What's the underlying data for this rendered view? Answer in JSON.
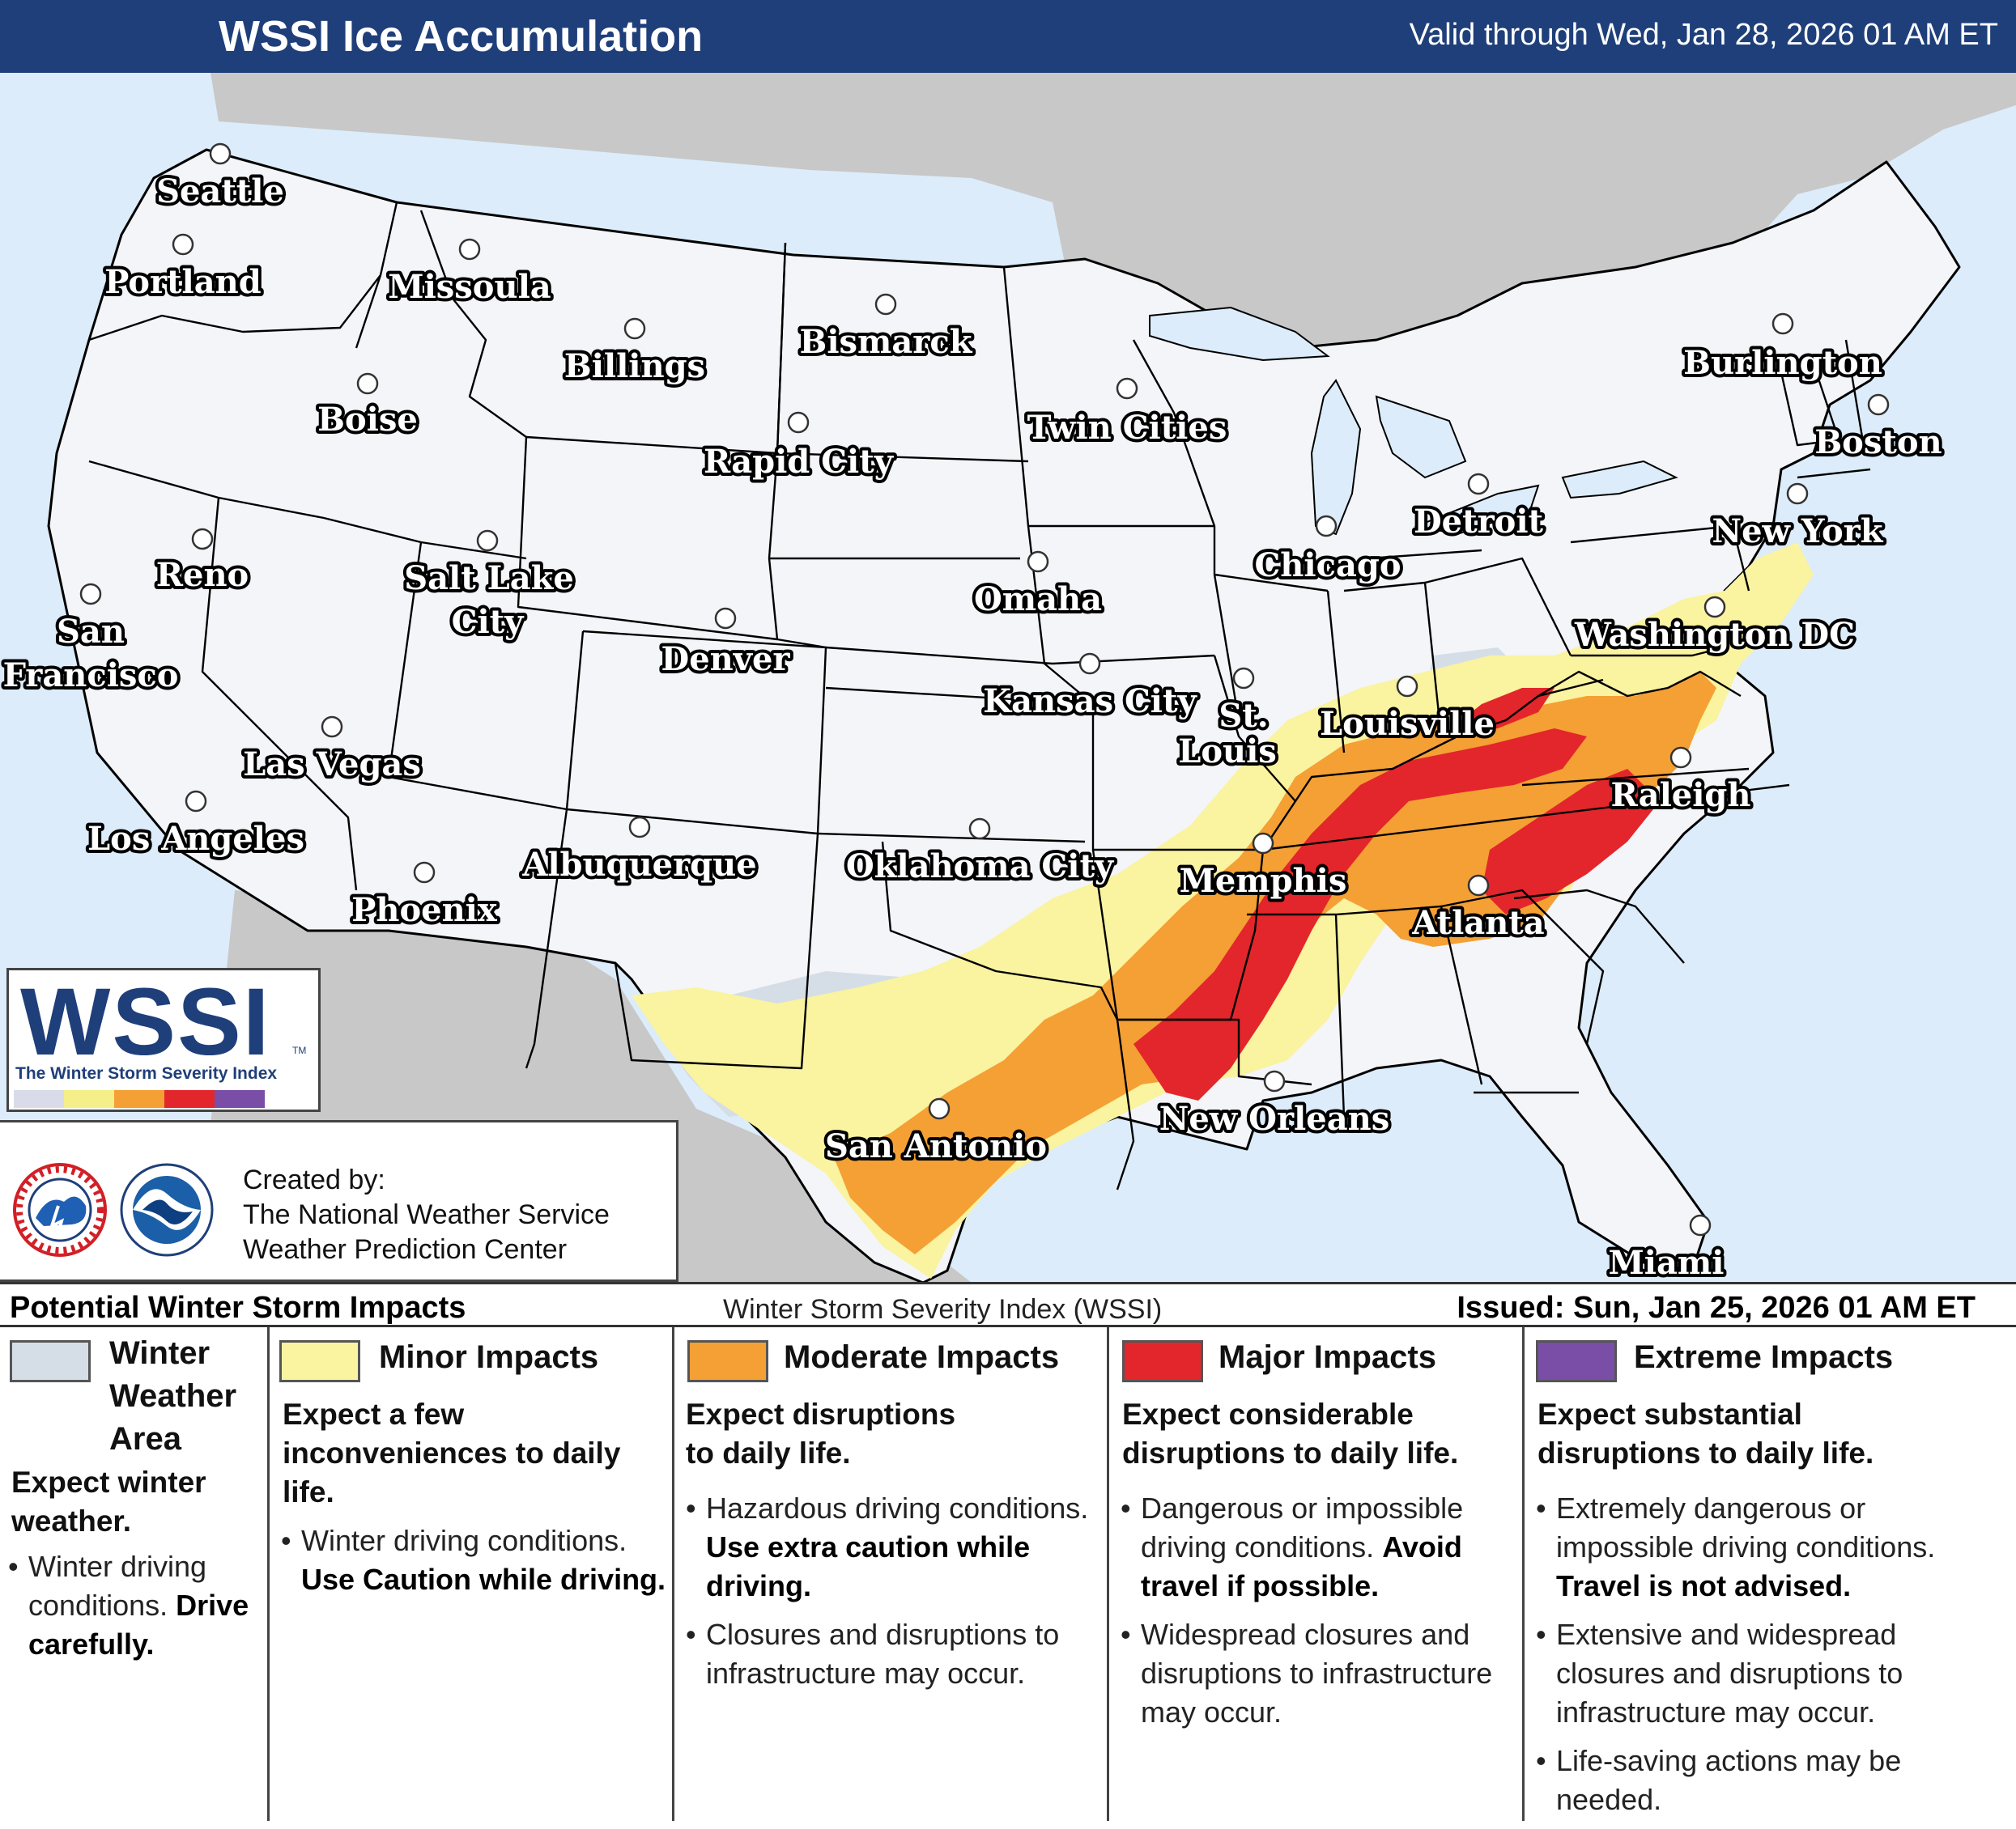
{
  "header": {
    "title": "WSSI Ice Accumulation",
    "valid": "Valid through Wed, Jan 28, 2026 01 AM ET"
  },
  "colors": {
    "header_bg": "#1f3f7a",
    "ocean": "#dcecfa",
    "foreign_land": "#c8c8c8",
    "land": "#f3f5f8",
    "winter_weather_area": "#d5dee6",
    "minor": "#faf3a0",
    "moderate": "#f4a034",
    "major": "#e3262b",
    "extreme": "#7a4ea6"
  },
  "cities": [
    {
      "name": "Seattle",
      "icon": "city-marker"
    },
    {
      "name": "Portland",
      "icon": "city-marker"
    },
    {
      "name": "Missoula",
      "icon": "city-marker"
    },
    {
      "name": "Bismarck",
      "icon": "city-marker"
    },
    {
      "name": "Billings",
      "icon": "city-marker"
    },
    {
      "name": "Boise",
      "icon": "city-marker"
    },
    {
      "name": "Twin Cities",
      "icon": "city-marker"
    },
    {
      "name": "Rapid City",
      "icon": "city-marker"
    },
    {
      "name": "Burlington",
      "icon": "city-marker"
    },
    {
      "name": "Boston",
      "icon": "city-marker"
    },
    {
      "name": "Reno",
      "icon": "city-marker"
    },
    {
      "name": "Salt Lake",
      "icon": "city-marker"
    },
    {
      "name": "City",
      "icon": ""
    },
    {
      "name": "Detroit",
      "icon": "city-marker"
    },
    {
      "name": "New York",
      "icon": "city-marker"
    },
    {
      "name": "Chicago",
      "icon": "city-marker"
    },
    {
      "name": "Omaha",
      "icon": "city-marker"
    },
    {
      "name": "San",
      "icon": "city-marker"
    },
    {
      "name": "Francisco",
      "icon": ""
    },
    {
      "name": "Denver",
      "icon": "city-marker"
    },
    {
      "name": "Washington DC",
      "icon": "city-marker"
    },
    {
      "name": "Kansas City",
      "icon": "city-marker"
    },
    {
      "name": "St.",
      "icon": "city-marker"
    },
    {
      "name": "Louis",
      "icon": ""
    },
    {
      "name": "Louisville",
      "icon": "city-marker"
    },
    {
      "name": "Las Vegas",
      "icon": "city-marker"
    },
    {
      "name": "Raleigh",
      "icon": "city-marker"
    },
    {
      "name": "Los Angeles",
      "icon": "city-marker"
    },
    {
      "name": "Albuquerque",
      "icon": "city-marker"
    },
    {
      "name": "Oklahoma City",
      "icon": "city-marker"
    },
    {
      "name": "Memphis",
      "icon": "city-marker"
    },
    {
      "name": "Phoenix",
      "icon": "city-marker"
    },
    {
      "name": "Atlanta",
      "icon": "city-marker"
    },
    {
      "name": "New Orleans",
      "icon": "city-marker"
    },
    {
      "name": "San Antonio",
      "icon": "city-marker"
    },
    {
      "name": "Miami",
      "icon": "city-marker"
    }
  ],
  "logo": {
    "word": "WSSI",
    "tm": "TM",
    "subtitle": "The Winter Storm Severity Index"
  },
  "credit": {
    "line1": "Created by:",
    "line2": "The National Weather Service",
    "line3": "Weather Prediction Center",
    "icons": [
      "nws-logo",
      "noaa-logo"
    ]
  },
  "legend": {
    "left": "Potential Winter Storm Impacts",
    "center": "Winter Storm Severity Index (WSSI)",
    "right": "Issued: Sun, Jan 25, 2026 01 AM ET",
    "columns": [
      {
        "title_lines": [
          "Winter",
          "Weather",
          "Area"
        ],
        "lead": [
          "Expect winter",
          "weather."
        ],
        "bullets": [
          {
            "text": "Winter driving conditions.",
            "bold": "Drive carefully."
          }
        ]
      },
      {
        "title": "Minor Impacts",
        "lead": [
          "Expect a few",
          "inconveniences to daily",
          "life."
        ],
        "bullets": [
          {
            "text": "Winter driving conditions.",
            "bold": "Use Caution while driving."
          }
        ]
      },
      {
        "title": "Moderate Impacts",
        "lead": [
          "Expect disruptions",
          "to daily life."
        ],
        "bullets": [
          {
            "text": "Hazardous driving conditions.",
            "bold": "Use extra caution while driving."
          },
          {
            "text": "Closures and disruptions to infrastructure may occur.",
            "bold": ""
          }
        ]
      },
      {
        "title": "Major Impacts",
        "lead": [
          "Expect considerable",
          "disruptions to daily life."
        ],
        "bullets": [
          {
            "text": "Dangerous or impossible driving conditions.",
            "bold": "Avoid travel if possible."
          },
          {
            "text": "Widespread closures and disruptions to infrastructure may occur.",
            "bold": ""
          }
        ]
      },
      {
        "title": "Extreme Impacts",
        "lead": [
          "Expect substantial",
          "disruptions to daily life."
        ],
        "bullets": [
          {
            "text": "Extremely dangerous or impossible driving conditions.",
            "bold": "Travel is not advised."
          },
          {
            "text": "Extensive and widespread closures and disruptions to infrastructure may occur.",
            "bold": ""
          },
          {
            "text": "Life-saving actions may be needed.",
            "bold": ""
          }
        ]
      }
    ]
  }
}
